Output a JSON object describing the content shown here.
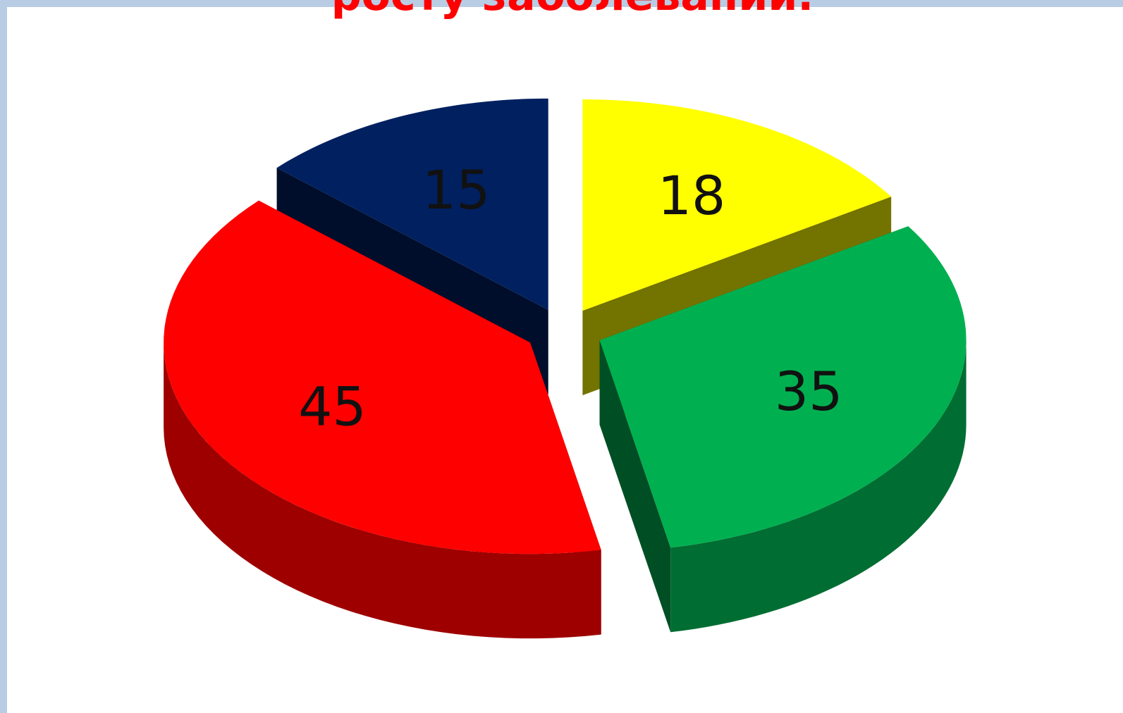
{
  "chart_data": {
    "type": "pie",
    "title": "росту заболеваний.",
    "values": [
      18,
      35,
      45,
      15
    ],
    "colors": [
      "#ffff00",
      "#00b050",
      "#ff0000",
      "#002060"
    ]
  }
}
